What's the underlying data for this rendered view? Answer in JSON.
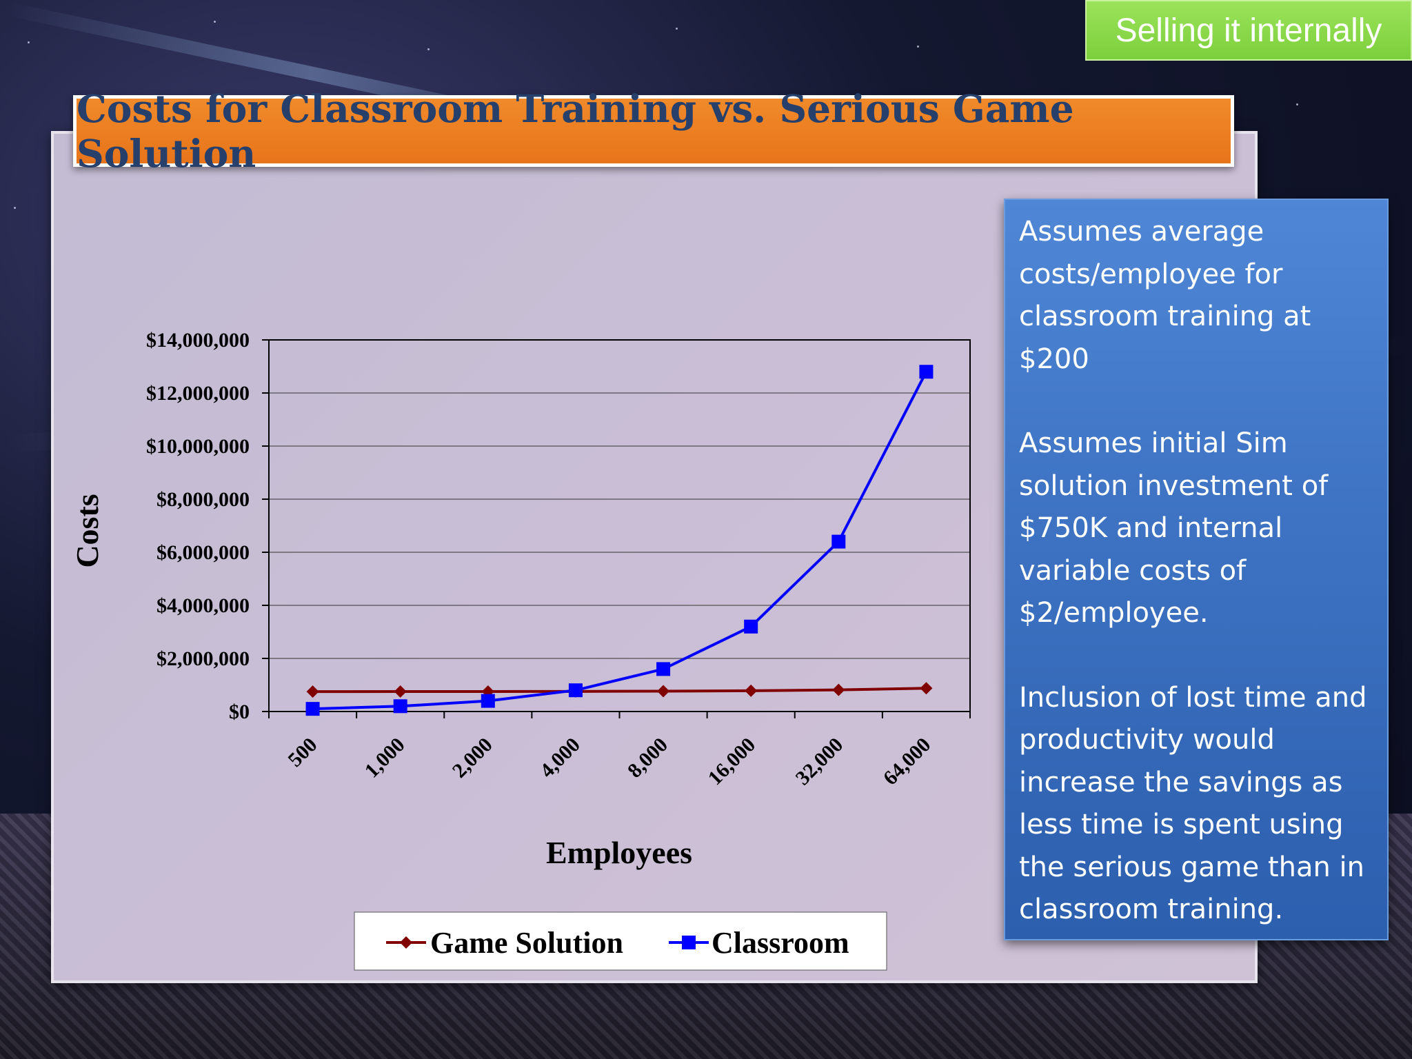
{
  "tag": {
    "label": "Selling it internally"
  },
  "slide": {
    "title": "Costs for Classroom Training vs. Serious Game Solution"
  },
  "notes": [
    "Assumes average costs/employee for classroom training at $200",
    "Assumes initial Sim solution investment of $750K and internal variable costs of $2/employee.",
    "Inclusion of  lost time and productivity would increase the savings as less time is spent using the serious game than in classroom training."
  ],
  "chart_data": {
    "type": "line",
    "title": "",
    "xlabel": "Employees",
    "ylabel": "Costs",
    "categories": [
      "500",
      "1,000",
      "2,000",
      "4,000",
      "8,000",
      "16,000",
      "32,000",
      "64,000"
    ],
    "ylim": [
      0,
      14000000
    ],
    "yticks": [
      0,
      2000000,
      4000000,
      6000000,
      8000000,
      10000000,
      12000000,
      14000000
    ],
    "ytick_labels": [
      "$0",
      "$2,000,000",
      "$4,000,000",
      "$6,000,000",
      "$8,000,000",
      "$10,000,000",
      "$12,000,000",
      "$14,000,000"
    ],
    "grid": true,
    "legend_position": "bottom",
    "series": [
      {
        "name": "Game Solution",
        "color": "#800000",
        "marker": "diamond",
        "values": [
          751000,
          752000,
          754000,
          758000,
          766000,
          782000,
          814000,
          878000
        ]
      },
      {
        "name": "Classroom",
        "color": "#0000ff",
        "marker": "square",
        "values": [
          100000,
          200000,
          400000,
          800000,
          1600000,
          3200000,
          6400000,
          12800000
        ]
      }
    ]
  }
}
